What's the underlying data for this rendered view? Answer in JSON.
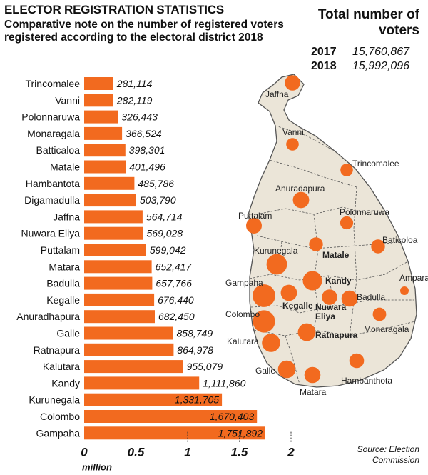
{
  "header": {
    "title": "ELECTOR REGISTRATION STATISTICS",
    "subtitle": "Comparative note on the number of registered voters registered according to the electoral district 2018"
  },
  "totals": {
    "heading": "Total number of voters",
    "rows": [
      {
        "year": "2017",
        "value": "15,760,867"
      },
      {
        "year": "2018",
        "value": "15,992,096"
      }
    ]
  },
  "source": "Source: Election Commission",
  "colors": {
    "bar": "#f26a1f",
    "map_land": "#ebe5d8",
    "map_border": "#555555",
    "dot": "#f26a1f"
  },
  "chart_data": {
    "type": "bar",
    "orientation": "horizontal",
    "title": "ELECTOR REGISTRATION STATISTICS",
    "xlabel": "million",
    "xlim": [
      0,
      2
    ],
    "x_ticks": [
      "0",
      "0.5",
      "1",
      "1.5",
      "2"
    ],
    "categories": [
      "Trincomalee",
      "Vanni",
      "Polonnaruwa",
      "Monaragala",
      "Batticaloa",
      "Matale",
      "Hambantota",
      "Digamadulla",
      "Jaffna",
      "Nuwara Eliya",
      "Puttalam",
      "Matara",
      "Badulla",
      "Kegalle",
      "Anuradhapura",
      "Galle",
      "Ratnapura",
      "Kalutara",
      "Kandy",
      "Kurunegala",
      "Colombo",
      "Gampaha"
    ],
    "values": [
      281114,
      282119,
      326443,
      366524,
      398301,
      401496,
      485786,
      503790,
      564714,
      569028,
      599042,
      652417,
      657766,
      676440,
      682450,
      858749,
      864978,
      955079,
      1111860,
      1331705,
      1670403,
      1751892
    ],
    "value_labels": [
      "281,114",
      "282,119",
      "326,443",
      "366,524",
      "398,301",
      "401,496",
      "485,786",
      "503,790",
      "564,714",
      "569,028",
      "599,042",
      "652,417",
      "657,766",
      "676,440",
      "682,450",
      "858,749",
      "864,978",
      "955,079",
      "1,111,860",
      "1,331,705",
      "1,670,403",
      "1,751,892"
    ]
  },
  "map": {
    "labels": [
      "Jaffna",
      "Vanni",
      "Trincomalee",
      "Anuradapura",
      "Puttalam",
      "Polonnaruwa",
      "Baticoloa",
      "Kurunegala",
      "Matale",
      "Gampaha",
      "Kandy",
      "Ampara",
      "Kegalle",
      "Nuwara Eliya",
      "Badulla",
      "Colombo",
      "Monaragala",
      "Kalutara",
      "Ratnapura",
      "Galle",
      "Matara",
      "Hambanthota"
    ]
  }
}
